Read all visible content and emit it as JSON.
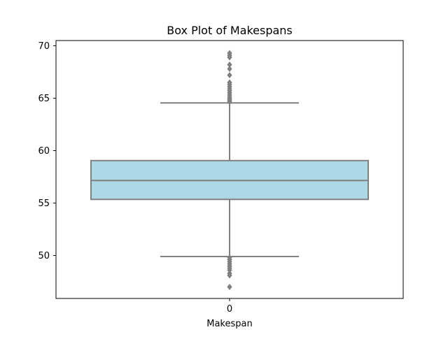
{
  "chart_data": {
    "type": "box",
    "title": "Box Plot of Makespans",
    "xlabel": "Makespan",
    "ylabel": "",
    "categories": [
      "0"
    ],
    "ylim": [
      45.9,
      70.5
    ],
    "yticks": [
      50,
      55,
      60,
      65,
      70
    ],
    "yticklabels": [
      "50",
      "55",
      "60",
      "65",
      "70"
    ],
    "grid": false,
    "box": {
      "whisker_low": 49.9,
      "q1": 55.35,
      "median": 57.15,
      "q3": 59.05,
      "whisker_high": 64.55,
      "outliers_high": [
        64.65,
        64.8,
        64.95,
        65.1,
        65.3,
        65.5,
        65.7,
        65.9,
        66.1,
        66.3,
        66.5,
        67.2,
        67.8,
        68.2,
        68.9,
        69.1,
        69.3
      ],
      "outliers_low": [
        49.8,
        49.6,
        49.4,
        49.2,
        49.0,
        48.8,
        48.6,
        48.3,
        48.1,
        47.0
      ]
    },
    "colors": {
      "box_fill": "#add8e6",
      "line": "#808080",
      "outlier": "#808080",
      "axes": "#000000"
    }
  }
}
